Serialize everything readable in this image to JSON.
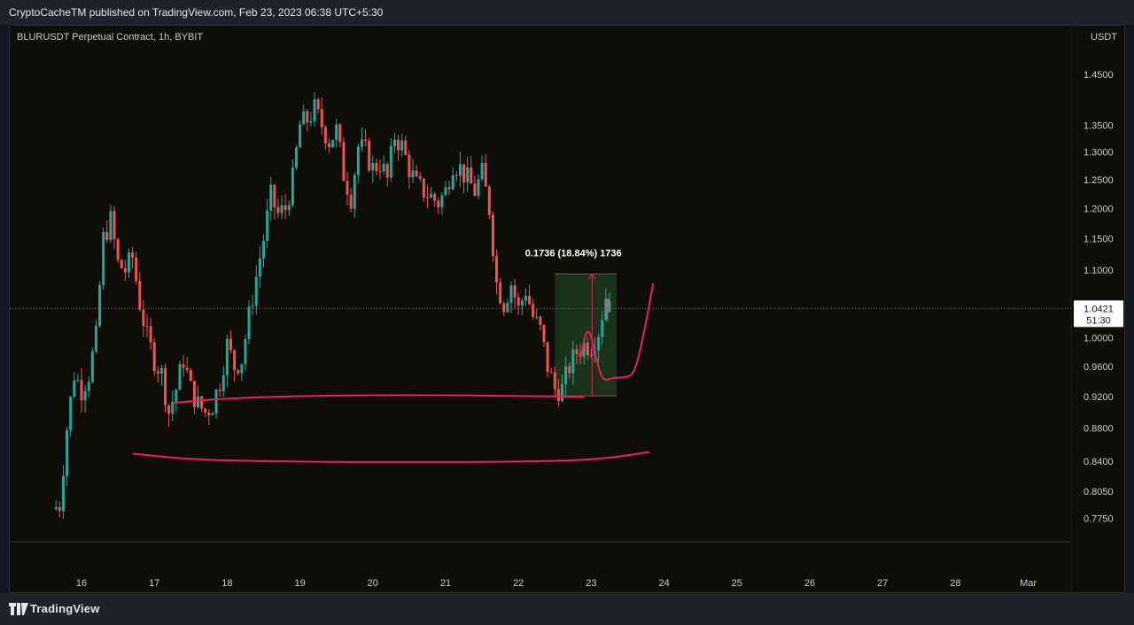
{
  "header": {
    "published_line": "CryptoCacheTM published on TradingView.com, Feb 23, 2023 06:38 UTC+5:30"
  },
  "chart_header": {
    "symbol": "BLURUSDT Perpetual Contract, 1h, BYBIT",
    "unit": "USDT"
  },
  "footer": {
    "brand": "TradingView"
  },
  "colors": {
    "up": "#26a69a",
    "down": "#ef5350",
    "annotation": "#e91e63",
    "range_fill": "#1b3a1b",
    "background": "#0f0d07"
  },
  "chart_data": {
    "type": "candlestick",
    "timeframe": "1h",
    "x_ticks": [
      "16",
      "17",
      "18",
      "19",
      "20",
      "21",
      "22",
      "23",
      "24",
      "25",
      "26",
      "27",
      "28",
      "Mar"
    ],
    "y_ticks": [
      "1.4500",
      "1.3500",
      "1.3000",
      "1.2500",
      "1.2000",
      "1.1500",
      "1.1000",
      "1.0000",
      "0.9600",
      "0.9200",
      "0.8800",
      "0.8400",
      "0.8050",
      "0.7750"
    ],
    "y_range": [
      0.76,
      1.5
    ],
    "y_scale": "log",
    "current_price": {
      "price": "1.0421",
      "countdown": "51:30"
    },
    "price_range_measure": {
      "label": "0.1736 (18.84%) 1736",
      "low": 0.921,
      "high": 1.094,
      "from_day": 22.5,
      "to_day": 23.35
    },
    "candles_path": [
      [
        15.6,
        0.785
      ],
      [
        15.7,
        0.79
      ],
      [
        15.8,
        0.88
      ],
      [
        15.9,
        0.95
      ],
      [
        16.0,
        0.93
      ],
      [
        16.1,
        0.95
      ],
      [
        16.2,
        1.0
      ],
      [
        16.3,
        1.15
      ],
      [
        16.4,
        1.18
      ],
      [
        16.5,
        1.11
      ],
      [
        16.6,
        1.1
      ],
      [
        16.7,
        1.12
      ],
      [
        16.8,
        1.05
      ],
      [
        16.9,
        1.0
      ],
      [
        17.0,
        0.97
      ],
      [
        17.1,
        0.95
      ],
      [
        17.2,
        0.9
      ],
      [
        17.3,
        0.93
      ],
      [
        17.4,
        0.97
      ],
      [
        17.5,
        0.93
      ],
      [
        17.6,
        0.91
      ],
      [
        17.7,
        0.9
      ],
      [
        17.8,
        0.91
      ],
      [
        17.9,
        0.94
      ],
      [
        18.0,
        0.99
      ],
      [
        18.1,
        0.96
      ],
      [
        18.2,
        0.97
      ],
      [
        18.3,
        1.03
      ],
      [
        18.4,
        1.09
      ],
      [
        18.5,
        1.15
      ],
      [
        18.6,
        1.22
      ],
      [
        18.7,
        1.19
      ],
      [
        18.8,
        1.2
      ],
      [
        18.9,
        1.25
      ],
      [
        19.0,
        1.35
      ],
      [
        19.1,
        1.36
      ],
      [
        19.2,
        1.38
      ],
      [
        19.3,
        1.35
      ],
      [
        19.4,
        1.32
      ],
      [
        19.5,
        1.34
      ],
      [
        19.6,
        1.26
      ],
      [
        19.7,
        1.22
      ],
      [
        19.8,
        1.31
      ],
      [
        19.9,
        1.3
      ],
      [
        20.0,
        1.27
      ],
      [
        20.1,
        1.28
      ],
      [
        20.2,
        1.25
      ],
      [
        20.3,
        1.33
      ],
      [
        20.4,
        1.31
      ],
      [
        20.5,
        1.27
      ],
      [
        20.6,
        1.24
      ],
      [
        20.7,
        1.23
      ],
      [
        20.8,
        1.22
      ],
      [
        20.9,
        1.21
      ],
      [
        21.0,
        1.23
      ],
      [
        21.1,
        1.28
      ],
      [
        21.2,
        1.27
      ],
      [
        21.3,
        1.25
      ],
      [
        21.4,
        1.23
      ],
      [
        21.5,
        1.26
      ],
      [
        21.6,
        1.2
      ],
      [
        21.7,
        1.08
      ],
      [
        21.8,
        1.05
      ],
      [
        21.9,
        1.08
      ],
      [
        22.0,
        1.04
      ],
      [
        22.1,
        1.07
      ],
      [
        22.2,
        1.03
      ],
      [
        22.3,
        1.01
      ],
      [
        22.4,
        0.96
      ],
      [
        22.5,
        0.93
      ],
      [
        22.6,
        0.93
      ],
      [
        22.7,
        0.96
      ],
      [
        22.8,
        0.98
      ],
      [
        22.9,
        0.99
      ],
      [
        23.0,
        0.99
      ],
      [
        23.1,
        1.01
      ],
      [
        23.2,
        1.06
      ],
      [
        23.25,
        1.04
      ]
    ],
    "projection_path": [
      [
        22.85,
        0.97
      ],
      [
        22.95,
        1.02
      ],
      [
        23.05,
        0.98
      ],
      [
        23.15,
        0.94
      ],
      [
        23.3,
        0.945
      ],
      [
        23.45,
        0.945
      ],
      [
        23.6,
        0.95
      ],
      [
        23.75,
        1.02
      ],
      [
        23.85,
        1.08
      ]
    ],
    "support_curves": [
      [
        [
          17.25,
          0.912
        ],
        [
          18.0,
          0.918
        ],
        [
          19.0,
          0.921
        ],
        [
          20.0,
          0.922
        ],
        [
          21.0,
          0.922
        ],
        [
          22.0,
          0.921
        ],
        [
          22.9,
          0.92
        ]
      ],
      [
        [
          16.7,
          0.849
        ],
        [
          17.5,
          0.842
        ],
        [
          18.5,
          0.84
        ],
        [
          19.5,
          0.839
        ],
        [
          20.5,
          0.839
        ],
        [
          21.5,
          0.839
        ],
        [
          22.5,
          0.84
        ],
        [
          23.2,
          0.843
        ],
        [
          23.8,
          0.851
        ]
      ]
    ]
  }
}
